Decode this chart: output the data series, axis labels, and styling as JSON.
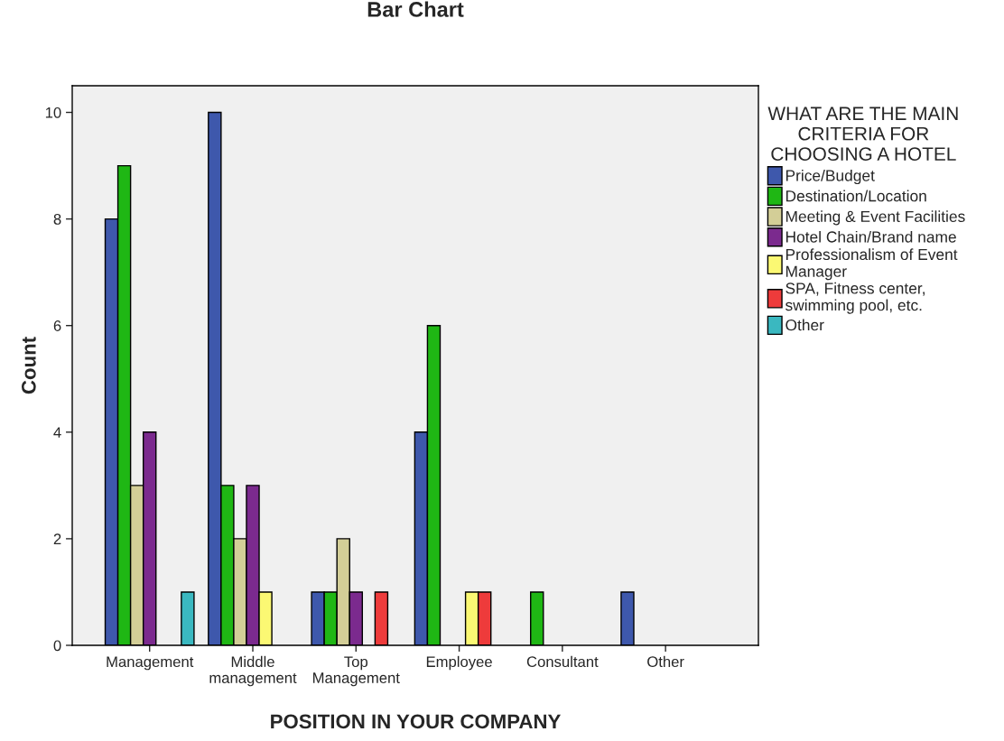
{
  "chart_data": {
    "type": "bar",
    "title": "Bar Chart",
    "xlabel": "POSITION IN YOUR COMPANY",
    "ylabel": "Count",
    "legend_title": "WHAT ARE THE MAIN\nCRITERIA FOR\nCHOOSING A HOTEL",
    "categories": [
      "Management",
      "Middle\nmanagement",
      "Top\nManagement",
      "Employee",
      "Consultant",
      "Other"
    ],
    "series": [
      {
        "name": "Price/Budget",
        "color": "#3e58ac",
        "values": [
          8,
          10,
          1,
          4,
          null,
          1
        ]
      },
      {
        "name": "Destination/Location",
        "color": "#1fb714",
        "values": [
          9,
          3,
          1,
          6,
          1,
          null
        ]
      },
      {
        "name": "Meeting & Event Facilities",
        "color": "#d3ce97",
        "values": [
          3,
          2,
          2,
          null,
          null,
          null
        ]
      },
      {
        "name": "Hotel Chain/Brand name",
        "color": "#7b2a8e",
        "values": [
          4,
          3,
          1,
          null,
          null,
          null
        ]
      },
      {
        "name": "Professionalism of Event\nManager",
        "color": "#fbf873",
        "values": [
          null,
          1,
          null,
          1,
          null,
          null
        ]
      },
      {
        "name": "SPA, Fitness center,\nswimming pool, etc.",
        "color": "#ee3b3b",
        "values": [
          null,
          null,
          1,
          1,
          null,
          null
        ]
      },
      {
        "name": "Other",
        "color": "#3ab8c0",
        "values": [
          1,
          null,
          null,
          null,
          null,
          null
        ]
      }
    ],
    "ylim": [
      0,
      10.5
    ],
    "yticks": [
      0,
      2,
      4,
      6,
      8,
      10
    ],
    "grid": false,
    "legend": "right"
  }
}
